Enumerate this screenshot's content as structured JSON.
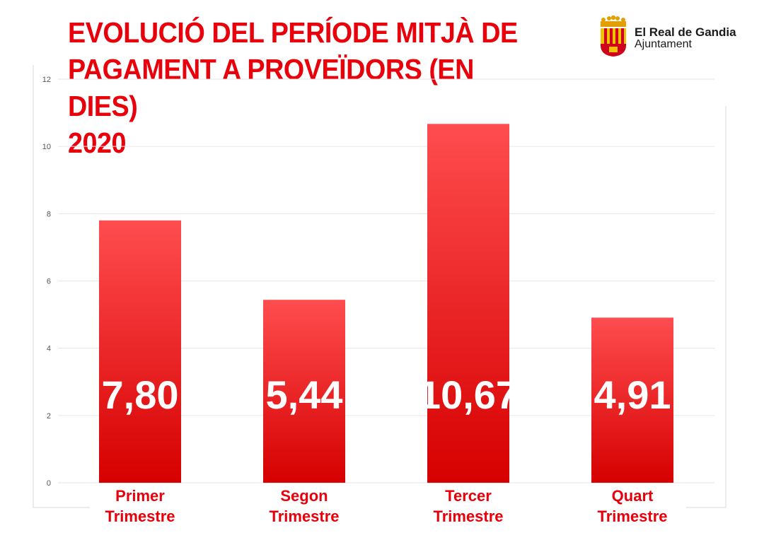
{
  "title_lines": [
    "EVOLUCIÓ DEL PERÍODE MITJÀ DE",
    "PAGAMENT A PROVEÏDORS (EN DIES)",
    "2020"
  ],
  "logo": {
    "name": "El Real de Gandia",
    "subtitle": "Ajuntament",
    "icon": "municipal-coat-of-arms-icon"
  },
  "colors": {
    "accent": "#e8000b",
    "bar_top": "#ff4d4f",
    "bar_bottom": "#d60000",
    "grid": "#e6e6e6"
  },
  "chart_data": {
    "type": "bar",
    "title": "EVOLUCIÓ DEL PERÍODE MITJÀ DE PAGAMENT A PROVEÏDORS (EN DIES) 2020",
    "categories": [
      [
        "Primer",
        "Trimestre"
      ],
      [
        "Segon",
        "Trimestre"
      ],
      [
        "Tercer",
        "Trimestre"
      ],
      [
        "Quart",
        "Trimestre"
      ]
    ],
    "values": [
      7.8,
      5.44,
      10.67,
      4.91
    ],
    "value_labels": [
      "7,80",
      "5,44",
      "10,67",
      "4,91"
    ],
    "yticks": [
      0,
      2,
      4,
      6,
      8,
      10,
      12
    ],
    "ylim": [
      0,
      12
    ],
    "xlabel": "",
    "ylabel": "",
    "grid": true,
    "legend": "none"
  }
}
